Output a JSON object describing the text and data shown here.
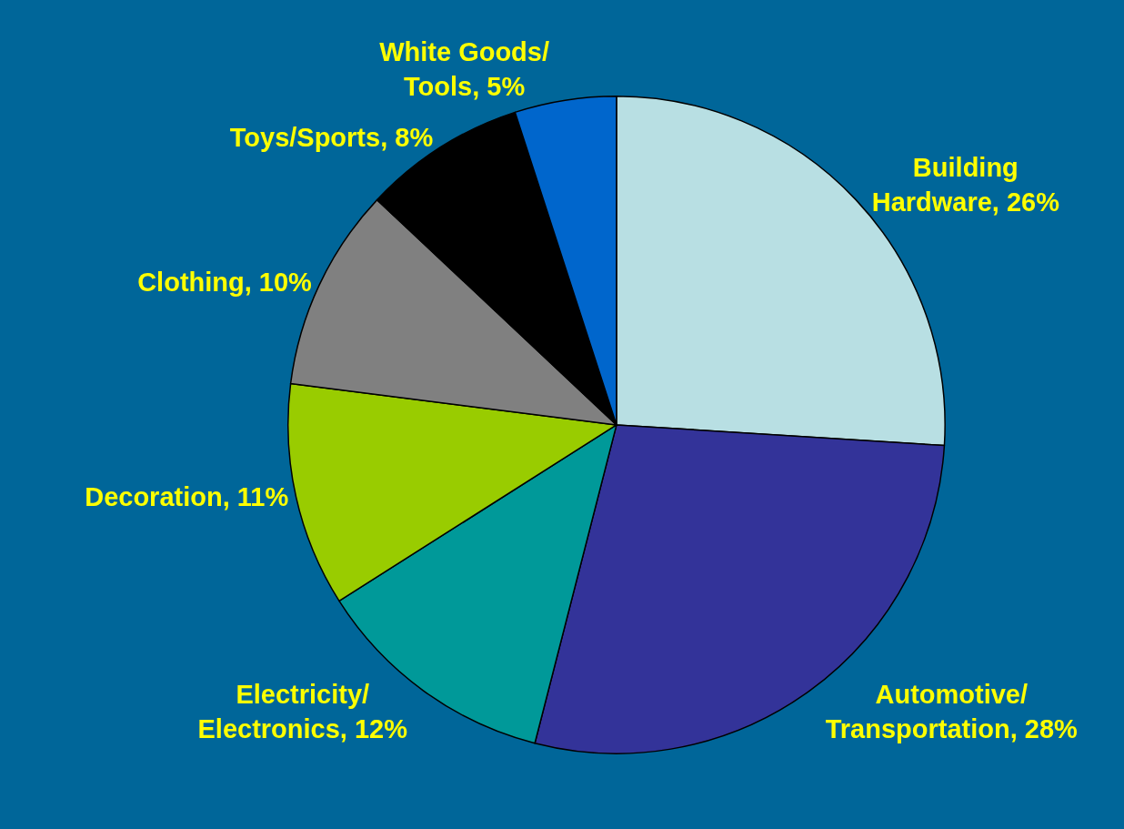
{
  "chart_data": {
    "type": "pie",
    "categories": [
      "Building Hardware",
      "Automotive/Transportation",
      "Electricity/Electronics",
      "Decoration",
      "Clothing",
      "Toys/Sports",
      "White Goods/Tools"
    ],
    "values": [
      26,
      28,
      12,
      11,
      10,
      8,
      5
    ],
    "value_labels": [
      "26%",
      "28%",
      "12%",
      "11%",
      "10%",
      "8%",
      "5%"
    ],
    "colors": [
      "#b8dfe3",
      "#333399",
      "#009999",
      "#99cc00",
      "#808080",
      "#000000",
      "#0066cc"
    ],
    "legend": false
  }
}
